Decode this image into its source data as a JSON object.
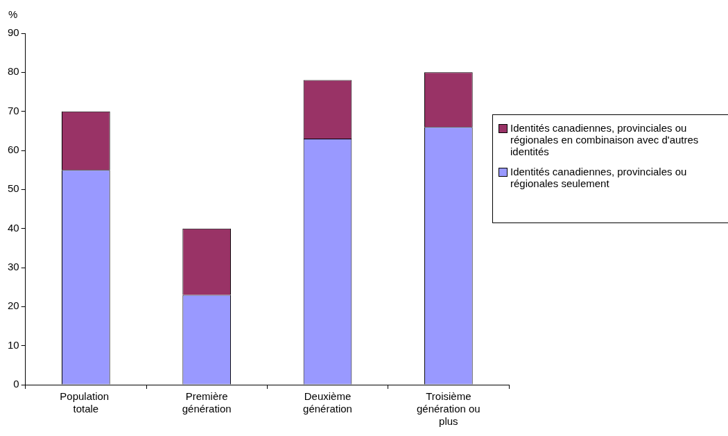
{
  "chart_data": {
    "type": "bar",
    "stacked": true,
    "ylabel": "%",
    "categories": [
      "Population  totale",
      "Première génération",
      "Deuxième génération",
      "Troisième génération ou plus"
    ],
    "series": [
      {
        "name": "Identités canadiennes, provinciales ou régionales seulement",
        "color": "#9999ff",
        "values": [
          55,
          23,
          63,
          66
        ]
      },
      {
        "name": "Identités canadiennes, provinciales ou régionales en combinaison avec d'autres identités",
        "color": "#993366",
        "values": [
          15,
          17,
          15,
          14
        ]
      }
    ],
    "ylim": [
      0,
      90
    ],
    "yticks": [
      0,
      10,
      20,
      30,
      40,
      50,
      60,
      70,
      80,
      90
    ],
    "grid": false,
    "legend": "right"
  }
}
